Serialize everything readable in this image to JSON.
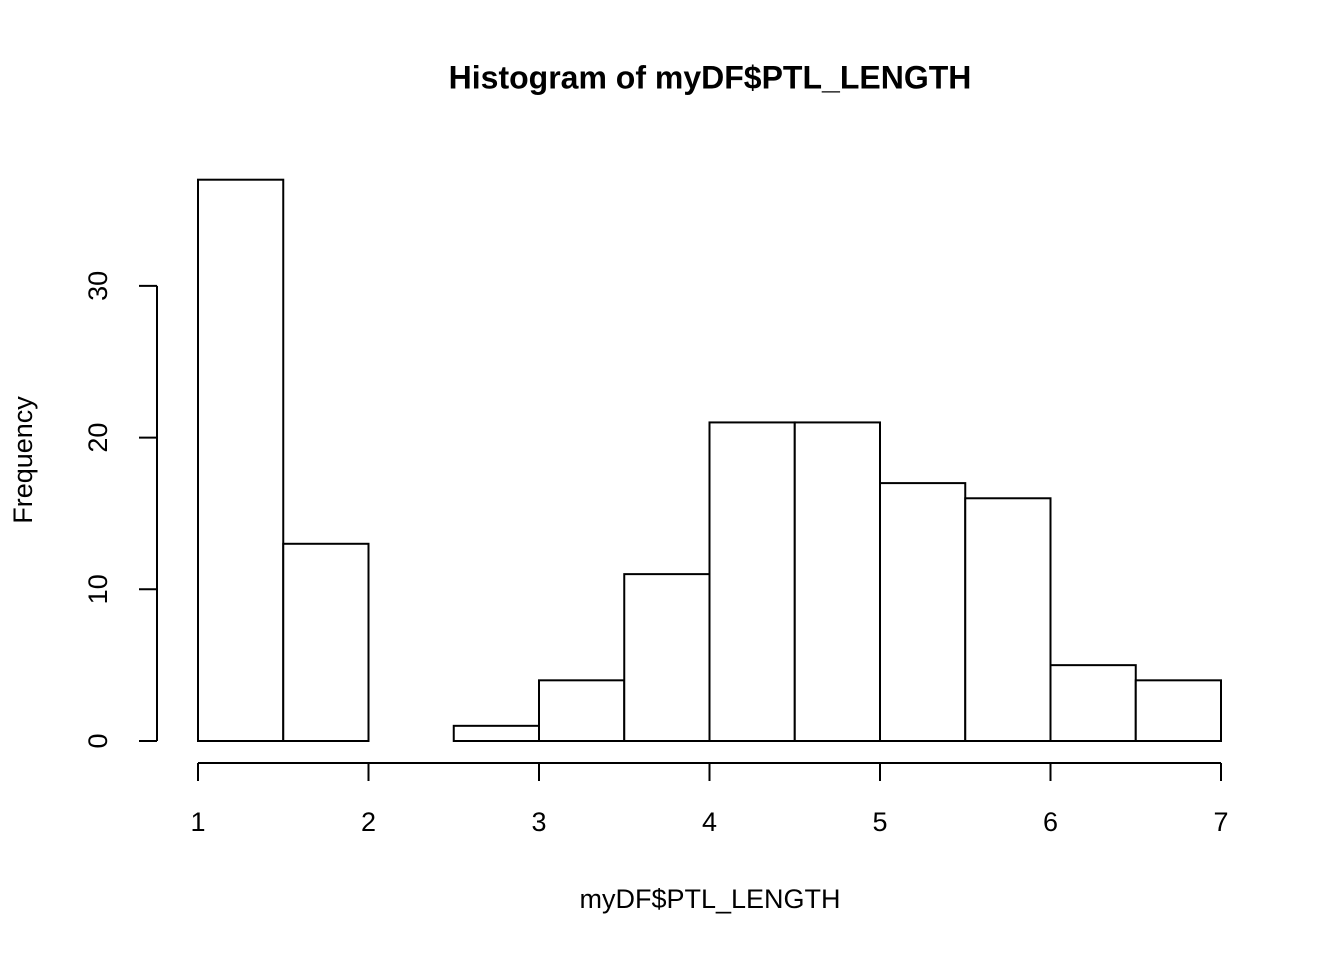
{
  "chart_data": {
    "type": "histogram",
    "title": "Histogram of myDF$PTL_LENGTH",
    "x_label": "myDF$PTL_LENGTH",
    "y_label": "Frequency",
    "bins": [
      1,
      1.5,
      2,
      2.5,
      3,
      3.5,
      4,
      4.5,
      5,
      5.5,
      6,
      6.5,
      7
    ],
    "values": [
      37,
      13,
      0,
      1,
      4,
      11,
      21,
      21,
      17,
      16,
      5,
      4
    ],
    "color": "#ffffff",
    "edgecolor": "#000000",
    "xlim": [
      1,
      7
    ],
    "xticks": [
      1,
      2,
      3,
      4,
      5,
      6,
      7
    ],
    "ylim": [
      0,
      37
    ],
    "yticks": [
      0,
      10,
      20,
      30
    ],
    "grid": false
  }
}
